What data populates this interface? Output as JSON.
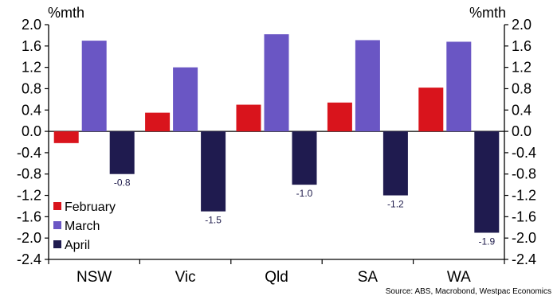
{
  "chart_data": {
    "type": "bar",
    "title": "",
    "y_unit_left": "%mth",
    "y_unit_right": "%mth",
    "categories": [
      "NSW",
      "Vic",
      "Qld",
      "SA",
      "WA"
    ],
    "series": [
      {
        "name": "February",
        "color": "#d9141c",
        "values": [
          -0.22,
          0.35,
          0.5,
          0.54,
          0.82
        ]
      },
      {
        "name": "March",
        "color": "#6a56c4",
        "values": [
          1.7,
          1.2,
          1.82,
          1.71,
          1.68
        ]
      },
      {
        "name": "April",
        "color": "#1f1b4f",
        "values": [
          -0.8,
          -1.5,
          -1.0,
          -1.2,
          -1.9
        ]
      }
    ],
    "data_labels": {
      "series": "April",
      "labels": [
        "-0.8",
        "-1.5",
        "-1.0",
        "-1.2",
        "-1.9"
      ]
    },
    "ylim": [
      -2.4,
      2.0
    ],
    "yticks": [
      2.0,
      1.6,
      1.2,
      0.8,
      0.4,
      0.0,
      -0.4,
      -0.8,
      -1.2,
      -1.6,
      -2.0,
      -2.4
    ],
    "ytick_labels": [
      "2.0",
      "1.6",
      "1.2",
      "0.8",
      "0.4",
      "0.0",
      "-0.4",
      "-0.8",
      "-1.2",
      "-1.6",
      "-2.0",
      "-2.4"
    ],
    "legend_position": "bottom-left",
    "grid": false,
    "source": "Source: ABS, Macrobond, Westpac Economics"
  }
}
